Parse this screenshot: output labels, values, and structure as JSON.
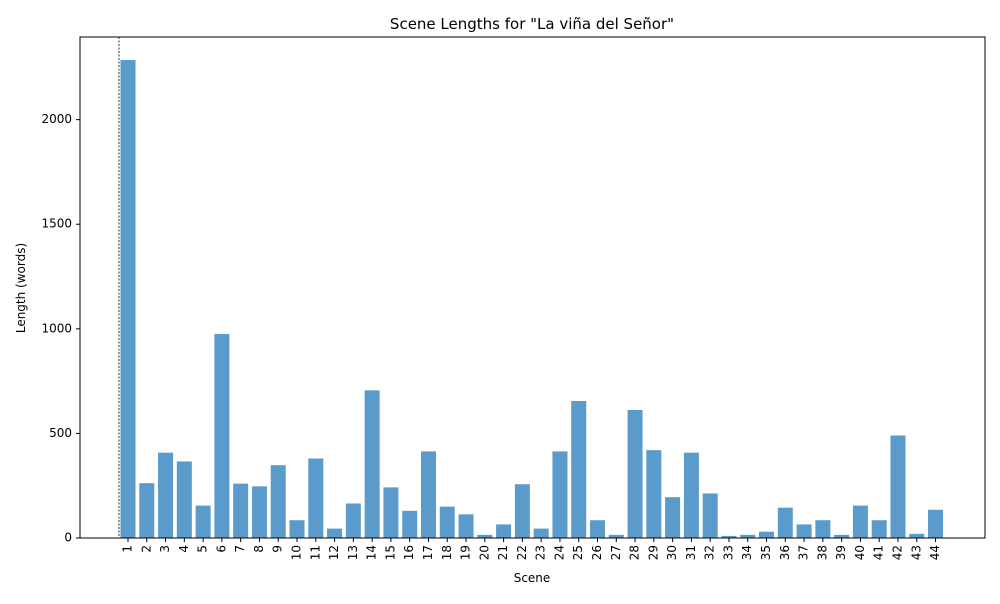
{
  "chart_data": {
    "type": "bar",
    "title": "Scene Lengths for \"La viña del Señor\"",
    "xlabel": "Scene",
    "ylabel": "Length (words)",
    "categories": [
      "1",
      "2",
      "3",
      "4",
      "5",
      "6",
      "7",
      "8",
      "9",
      "10",
      "11",
      "12",
      "13",
      "14",
      "15",
      "16",
      "17",
      "18",
      "19",
      "20",
      "21",
      "22",
      "23",
      "24",
      "25",
      "26",
      "27",
      "28",
      "29",
      "30",
      "31",
      "32",
      "33",
      "34",
      "35",
      "36",
      "37",
      "38",
      "39",
      "40",
      "41",
      "42",
      "43",
      "44"
    ],
    "values": [
      2285,
      262,
      408,
      366,
      155,
      975,
      260,
      247,
      348,
      85,
      380,
      45,
      165,
      706,
      242,
      130,
      414,
      150,
      113,
      15,
      65,
      257,
      45,
      414,
      655,
      85,
      15,
      612,
      420,
      195,
      408,
      213,
      10,
      15,
      30,
      145,
      65,
      85,
      15,
      155,
      85,
      490,
      20,
      135
    ],
    "yticks": [
      0,
      500,
      1000,
      1500,
      2000
    ],
    "ylim": [
      0,
      2395
    ],
    "bar_color": "#5b9bcc",
    "vline_at_category": "1",
    "grid": false,
    "legend": "none"
  }
}
